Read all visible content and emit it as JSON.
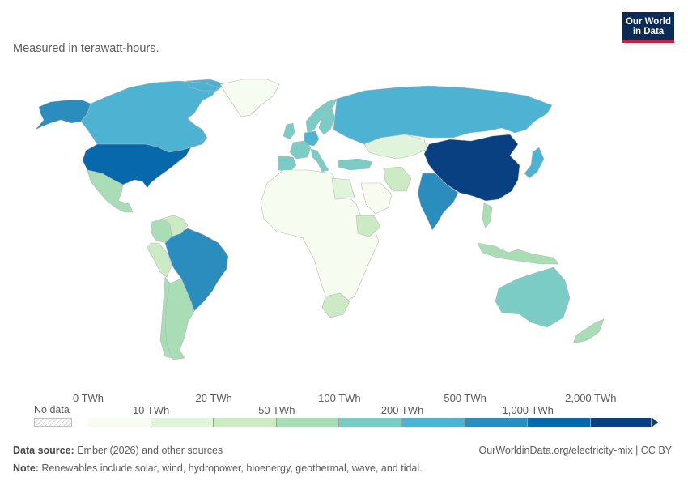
{
  "subtitle": "Measured in terawatt-hours.",
  "logo": {
    "line1": "Our World",
    "line2": "in Data"
  },
  "legend": {
    "no_data_label": "No data",
    "bins": [
      {
        "from_label": "0 TWh",
        "to_label": "10 TWh",
        "color": "#f7fcf0"
      },
      {
        "from_label": "10 TWh",
        "to_label": "20 TWh",
        "color": "#e0f3db"
      },
      {
        "from_label": "20 TWh",
        "to_label": "50 TWh",
        "color": "#ccebc5"
      },
      {
        "from_label": "50 TWh",
        "to_label": "100 TWh",
        "color": "#a8ddb5"
      },
      {
        "from_label": "100 TWh",
        "to_label": "200 TWh",
        "color": "#7bccc4"
      },
      {
        "from_label": "200 TWh",
        "to_label": "500 TWh",
        "color": "#4eb3d3"
      },
      {
        "from_label": "500 TWh",
        "to_label": "1,000 TWh",
        "color": "#2b8cbe"
      },
      {
        "from_label": "1,000 TWh",
        "to_label": "2,000 TWh",
        "color": "#0868ac"
      },
      {
        "from_label": "2,000 TWh",
        "to_label": "",
        "color": "#084081"
      }
    ],
    "tick_labels_top": [
      "0 TWh",
      "20 TWh",
      "100 TWh",
      "500 TWh",
      "2,000 TWh"
    ],
    "tick_labels_bottom": [
      "10 TWh",
      "50 TWh",
      "200 TWh",
      "1,000 TWh"
    ]
  },
  "footer": {
    "source_label": "Data source:",
    "source_text": "Ember (2026) and other sources",
    "note_label": "Note:",
    "note_text": "Renewables include solar, wind, hydropower, bioenergy, geothermal, wave, and tidal.",
    "url": "OurWorldinData.org/electricity-mix | CC BY"
  },
  "map": {
    "regions": [
      {
        "name": "Alaska",
        "color": "#2b8cbe"
      },
      {
        "name": "Canada",
        "color": "#4eb3d3"
      },
      {
        "name": "United States",
        "color": "#0868ac"
      },
      {
        "name": "Mexico",
        "color": "#a8ddb5"
      },
      {
        "name": "Brazil",
        "color": "#2b8cbe"
      },
      {
        "name": "Argentina",
        "color": "#a8ddb5"
      },
      {
        "name": "Colombia",
        "color": "#a8ddb5"
      },
      {
        "name": "Russia",
        "color": "#4eb3d3"
      },
      {
        "name": "China",
        "color": "#084081"
      },
      {
        "name": "India",
        "color": "#2b8cbe"
      },
      {
        "name": "Japan",
        "color": "#4eb3d3"
      },
      {
        "name": "Australia",
        "color": "#7bccc4"
      },
      {
        "name": "Turkey",
        "color": "#7bccc4"
      },
      {
        "name": "Norway",
        "color": "#7bccc4"
      },
      {
        "name": "Sweden",
        "color": "#7bccc4"
      },
      {
        "name": "Germany",
        "color": "#4eb3d3"
      },
      {
        "name": "France",
        "color": "#7bccc4"
      },
      {
        "name": "Spain",
        "color": "#7bccc4"
      },
      {
        "name": "Italy",
        "color": "#7bccc4"
      },
      {
        "name": "United Kingdom",
        "color": "#7bccc4"
      },
      {
        "name": "Greenland",
        "color": "#f7fcf0"
      },
      {
        "name": "Kazakhstan",
        "color": "#e0f3db"
      },
      {
        "name": "Iran",
        "color": "#ccebc5"
      },
      {
        "name": "Africa (most countries)",
        "color": "#f7fcf0"
      },
      {
        "name": "Egypt",
        "color": "#e0f3db"
      },
      {
        "name": "Ethiopia",
        "color": "#ccebc5"
      },
      {
        "name": "South Africa",
        "color": "#ccebc5"
      },
      {
        "name": "Vietnam",
        "color": "#a8ddb5"
      },
      {
        "name": "Indonesia",
        "color": "#a8ddb5"
      },
      {
        "name": "New Zealand",
        "color": "#a8ddb5"
      },
      {
        "name": "Peru",
        "color": "#ccebc5"
      },
      {
        "name": "Chile",
        "color": "#a8ddb5"
      },
      {
        "name": "Venezuela",
        "color": "#ccebc5"
      },
      {
        "name": "Saudi Arabia",
        "color": "#f7fcf0"
      }
    ]
  }
}
